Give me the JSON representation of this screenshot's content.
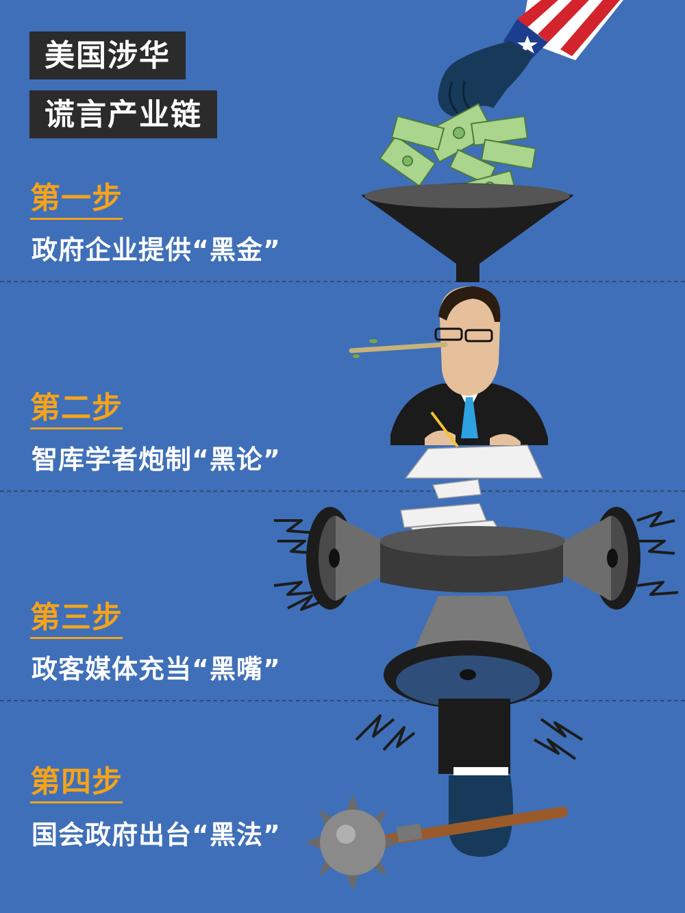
{
  "title": {
    "line1": "美国涉华",
    "line2": "谎言产业链"
  },
  "steps": [
    {
      "label": "第一步",
      "desc": "政府企业提供“黑金”"
    },
    {
      "label": "第二步",
      "desc": "智库学者炮制“黑论”"
    },
    {
      "label": "第三步",
      "desc": "政客媒体充当“黑嘴”"
    },
    {
      "label": "第四步",
      "desc": "国会政府出台“黑法”"
    }
  ],
  "colors": {
    "background": "#3f6fb8",
    "title_box": "#2b2b2b",
    "step_accent": "#f5a31a",
    "text": "#ffffff",
    "money": "#a9d58c"
  },
  "icons": [
    "us-flag-sleeve-icon",
    "hand-icon",
    "dollar-bill-icon",
    "funnel-icon",
    "pinocchio-scholar-icon",
    "paper-icon",
    "megaphone-icon",
    "lightning-icon",
    "mace-icon"
  ]
}
